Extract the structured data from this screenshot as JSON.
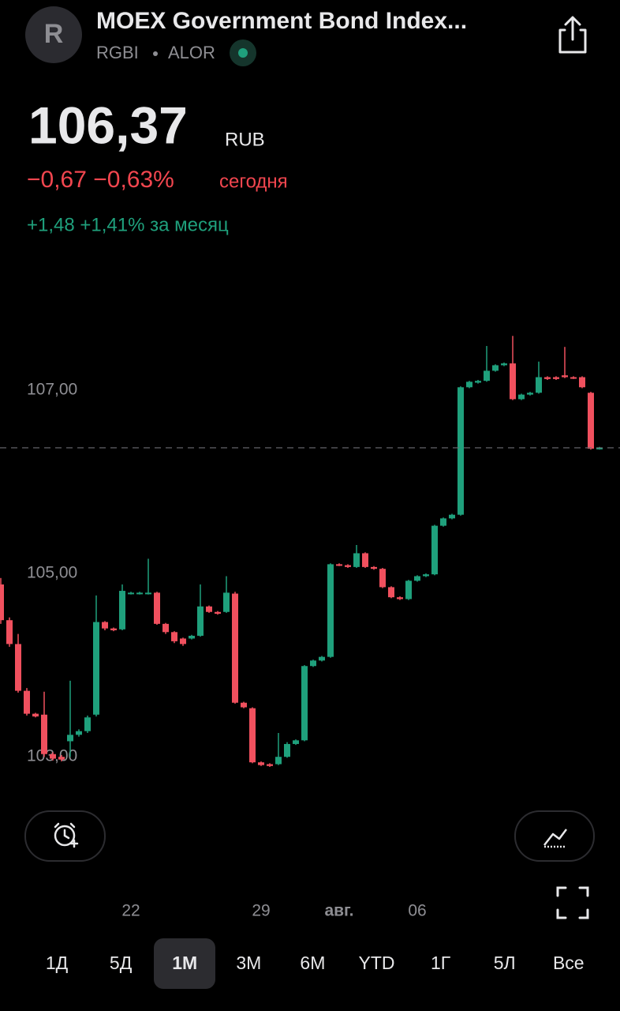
{
  "header": {
    "avatar": "R",
    "title": "MOEX Government Bond Index...",
    "ticker": "RGBI",
    "broker": "ALOR"
  },
  "quote": {
    "price": "106,37",
    "currency": "RUB",
    "day_change": "−0,67 −0,63%",
    "day_label": "сегодня",
    "month_change": "+1,48 +1,41% за месяц"
  },
  "chart_data": {
    "type": "candlestick",
    "up_color": "#1fa07c",
    "down_color": "#f0505e",
    "grid": false,
    "categories": [
      null,
      null,
      null,
      null,
      null,
      null,
      null,
      null,
      null,
      null,
      null,
      null,
      null,
      null,
      null,
      "22",
      null,
      null,
      null,
      null,
      null,
      null,
      null,
      null,
      null,
      null,
      null,
      null,
      null,
      null,
      "29",
      null,
      null,
      null,
      null,
      null,
      null,
      null,
      null,
      "авг.",
      null,
      null,
      null,
      null,
      null,
      null,
      null,
      null,
      "06",
      null,
      null,
      null,
      null,
      null,
      null,
      null,
      null,
      null,
      null,
      null,
      null,
      null,
      null,
      null,
      null,
      null,
      null,
      null,
      null,
      null
    ],
    "open": [
      104.88,
      104.49,
      104.23,
      103.72,
      103.47,
      103.46,
      103.03,
      103.0,
      103.17,
      103.24,
      103.28,
      103.46,
      104.47,
      104.4,
      104.39,
      104.78,
      104.78,
      104.78,
      104.79,
      104.45,
      104.36,
      104.29,
      104.29,
      104.32,
      104.64,
      104.58,
      104.58,
      104.78,
      103.59,
      103.53,
      102.94,
      102.92,
      102.92,
      103.0,
      103.14,
      103.18,
      103.99,
      104.05,
      104.09,
      105.1,
      105.09,
      105.07,
      105.22,
      105.07,
      105.05,
      104.85,
      104.74,
      104.72,
      104.92,
      104.97,
      104.99,
      105.52,
      105.6,
      105.64,
      107.03,
      107.08,
      107.1,
      107.21,
      107.27,
      107.29,
      106.9,
      106.95,
      106.97,
      107.14,
      107.14,
      107.16,
      107.14,
      107.14,
      106.97,
      106.36
    ],
    "close": [
      104.49,
      104.23,
      103.72,
      103.47,
      103.44,
      103.03,
      102.98,
      102.97,
      103.24,
      103.28,
      103.43,
      104.47,
      104.4,
      104.38,
      104.81,
      104.79,
      104.79,
      104.79,
      104.45,
      104.36,
      104.26,
      104.23,
      104.32,
      104.64,
      104.58,
      104.56,
      104.79,
      103.59,
      103.54,
      102.94,
      102.91,
      102.9,
      103.0,
      103.14,
      103.18,
      103.99,
      104.05,
      104.09,
      105.1,
      105.09,
      105.07,
      105.22,
      105.07,
      105.05,
      104.85,
      104.74,
      104.72,
      104.92,
      104.97,
      104.99,
      105.52,
      105.6,
      105.64,
      107.03,
      107.09,
      107.1,
      107.21,
      107.27,
      107.29,
      106.9,
      106.95,
      106.97,
      107.14,
      107.12,
      107.12,
      107.14,
      107.13,
      107.03,
      106.36,
      106.37
    ],
    "high": [
      104.95,
      104.52,
      104.34,
      103.75,
      103.48,
      103.71,
      103.05,
      103.02,
      103.83,
      103.3,
      103.45,
      104.76,
      104.48,
      104.41,
      104.88,
      104.8,
      104.8,
      105.16,
      104.8,
      104.46,
      104.37,
      104.3,
      104.33,
      104.88,
      104.65,
      104.59,
      104.97,
      104.8,
      103.6,
      103.54,
      102.95,
      102.93,
      103.26,
      103.16,
      103.19,
      104.0,
      104.06,
      104.1,
      105.11,
      105.11,
      105.1,
      105.31,
      105.23,
      105.08,
      105.06,
      104.86,
      104.75,
      104.93,
      104.98,
      105.0,
      105.53,
      105.61,
      105.65,
      107.04,
      107.1,
      107.11,
      107.48,
      107.28,
      107.3,
      107.59,
      106.96,
      106.98,
      107.31,
      107.15,
      107.15,
      107.47,
      107.15,
      107.15,
      106.98,
      106.38
    ],
    "low": [
      104.45,
      104.2,
      103.7,
      103.45,
      103.43,
      103.0,
      102.96,
      102.95,
      103.0,
      103.22,
      103.26,
      103.44,
      104.38,
      104.37,
      104.38,
      104.77,
      104.77,
      104.77,
      104.44,
      104.34,
      104.24,
      104.21,
      104.28,
      104.31,
      104.57,
      104.55,
      104.57,
      103.58,
      103.53,
      102.93,
      102.9,
      102.89,
      102.91,
      102.99,
      103.13,
      103.17,
      103.98,
      104.04,
      104.08,
      105.08,
      105.06,
      105.06,
      105.06,
      105.04,
      104.84,
      104.73,
      104.71,
      104.71,
      104.91,
      104.96,
      104.98,
      105.51,
      105.59,
      105.63,
      107.02,
      107.07,
      107.09,
      107.2,
      107.26,
      106.89,
      106.89,
      106.94,
      106.96,
      107.11,
      107.11,
      107.13,
      107.12,
      107.02,
      106.35,
      106.35
    ],
    "last_price": 106.37,
    "ylim": [
      102.64,
      107.98
    ],
    "yticks": [
      {
        "value": 103,
        "label": "103,00"
      },
      {
        "value": 105,
        "label": "105,00"
      },
      {
        "value": 107,
        "label": "107,00"
      }
    ]
  },
  "periods": [
    "1Д",
    "5Д",
    "1М",
    "3М",
    "6М",
    "YTD",
    "1Г",
    "5Л",
    "Все"
  ]
}
